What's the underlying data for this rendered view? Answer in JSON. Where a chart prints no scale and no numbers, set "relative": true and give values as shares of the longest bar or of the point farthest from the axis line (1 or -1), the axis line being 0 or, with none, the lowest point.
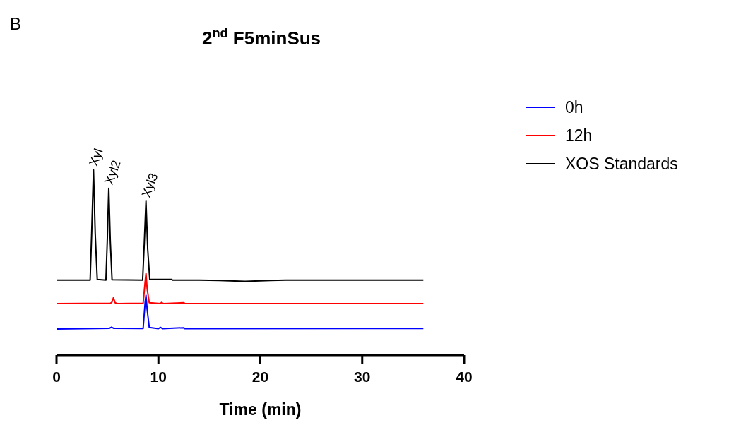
{
  "chart_data": {
    "type": "line",
    "relative": true,
    "title": "2$^{nd}$ F5minSus",
    "xlabel": "Time (min)",
    "xlim": [
      0,
      40
    ],
    "xticks": [
      0,
      10,
      20,
      30,
      40
    ],
    "legend": "right",
    "grid": false,
    "marker": "none",
    "line_style": "solid",
    "annotations": [
      "B",
      {
        "text": "Xyl",
        "x": 3.63,
        "y": 1.0
      },
      {
        "text": "Xyl2",
        "x": 5.13,
        "y": 0.901
      },
      {
        "text": "Xyl3",
        "x": 8.78,
        "y": 0.831
      }
    ],
    "series": [
      {
        "name": "0h",
        "color": "#0000ff",
        "x": [
          0,
          5.2,
          5.4,
          5.6,
          8.5,
          8.7,
          8.78,
          8.9,
          9.1,
          10,
          10.2,
          10.4,
          12.5,
          12.6,
          36
        ],
        "values": [
          0.141,
          0.145,
          0.151,
          0.145,
          0.144,
          0.287,
          0.323,
          0.244,
          0.15,
          0.143,
          0.15,
          0.143,
          0.148,
          0.143,
          0.144
        ]
      },
      {
        "name": "12h",
        "color": "#ff0000",
        "x": [
          0,
          5.3,
          5.45,
          5.59,
          5.75,
          6,
          8.5,
          8.7,
          8.78,
          8.9,
          9.1,
          10.2,
          10.3,
          10.5,
          12.5,
          12.6,
          36
        ],
        "values": [
          0.278,
          0.28,
          0.287,
          0.31,
          0.283,
          0.278,
          0.28,
          0.399,
          0.441,
          0.356,
          0.283,
          0.278,
          0.285,
          0.278,
          0.283,
          0.278,
          0.278
        ]
      },
      {
        "name": "XOS Standards",
        "color": "#000000",
        "x": [
          0,
          3.3,
          3.45,
          3.63,
          3.8,
          4.0,
          4.85,
          4.98,
          5.13,
          5.28,
          5.45,
          8.45,
          8.62,
          8.78,
          8.95,
          9.15,
          11.3,
          11.4,
          14,
          16,
          18.5,
          21,
          22.5,
          36
        ],
        "values": [
          0.405,
          0.405,
          0.656,
          1.0,
          0.656,
          0.409,
          0.405,
          0.613,
          0.901,
          0.613,
          0.407,
          0.405,
          0.613,
          0.831,
          0.571,
          0.409,
          0.409,
          0.405,
          0.405,
          0.403,
          0.398,
          0.403,
          0.405,
          0.405
        ]
      }
    ]
  }
}
